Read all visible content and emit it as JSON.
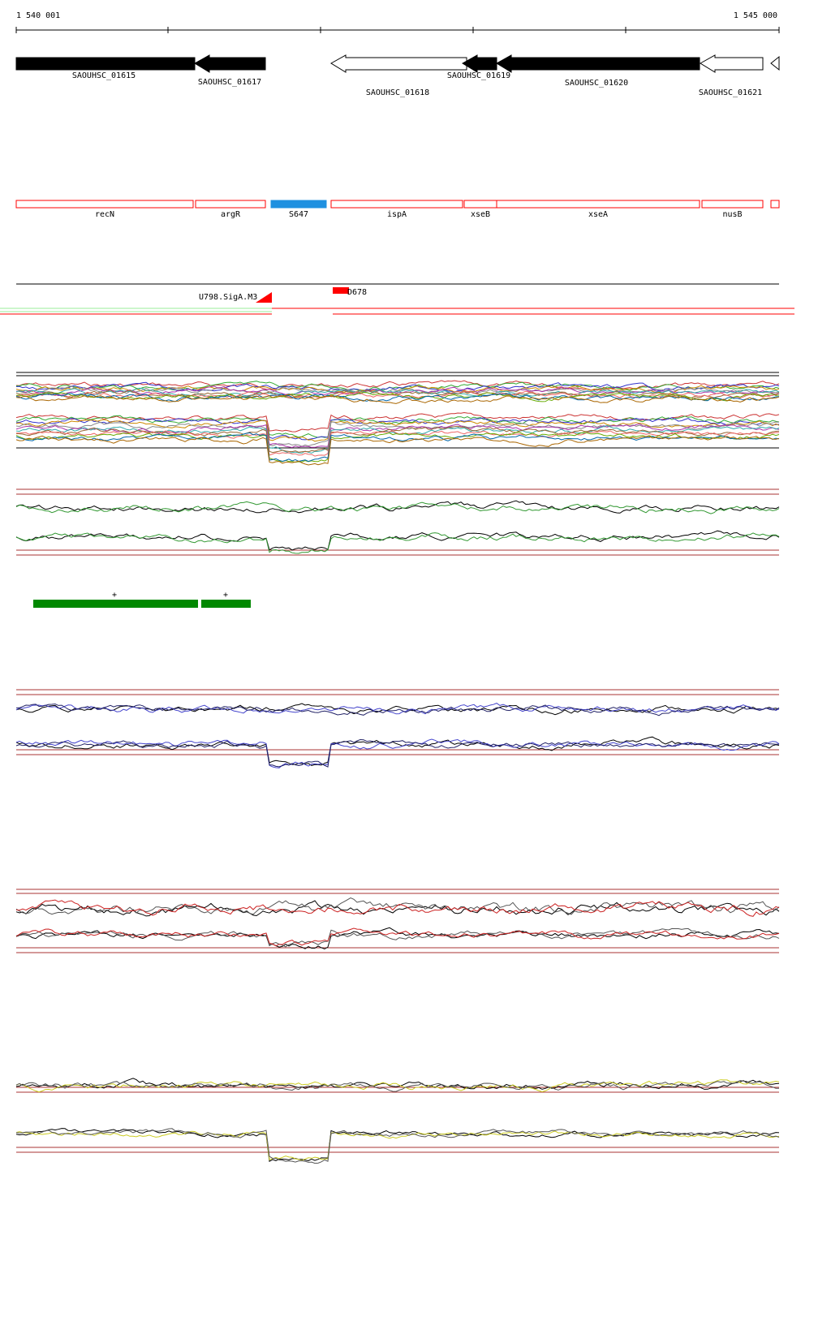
{
  "coordinates": {
    "start": "1 540 001",
    "end": "1 545 000"
  },
  "genes": [
    {
      "label": "SAOUHSC_01615"
    },
    {
      "label": "SAOUHSC_01617"
    },
    {
      "label": "SAOUHSC_01618"
    },
    {
      "label": "SAOUHSC_01619"
    },
    {
      "label": "SAOUHSC_01620"
    },
    {
      "label": "SAOUHSC_01621"
    }
  ],
  "features": [
    {
      "label": "recN"
    },
    {
      "label": "argR"
    },
    {
      "label": "S647"
    },
    {
      "label": "ispA"
    },
    {
      "label": "xseB"
    },
    {
      "label": "xseA"
    },
    {
      "label": "nusB"
    }
  ],
  "promoters": [
    {
      "label": "U798.SigA.M3"
    },
    {
      "label": "D678"
    }
  ],
  "segments": [
    {
      "label": "+"
    },
    {
      "label": "+"
    }
  ]
}
